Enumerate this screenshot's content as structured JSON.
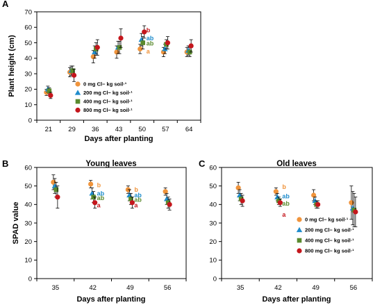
{
  "colors": {
    "0 mg": "#f0943c",
    "200 mg": "#1f8ccc",
    "400 mg": "#5a8a2e",
    "800 mg": "#c4161c"
  },
  "chart_data": [
    {
      "id": "A",
      "type": "scatter",
      "panel_label": "A",
      "title": "",
      "xlabel": "Days after planting",
      "ylabel": "Plant height (cm)",
      "categories": [
        "21",
        "29",
        "36",
        "43",
        "50",
        "57",
        "64"
      ],
      "ylim": [
        0,
        70
      ],
      "yticks": [
        0,
        10,
        20,
        30,
        40,
        50,
        60,
        70
      ],
      "legend_position": "bottom-center",
      "series": [
        {
          "name": "0 mg Cl− kg soil·¹",
          "marker": "circle",
          "color": "#f0943c",
          "values": [
            18,
            31,
            41,
            44,
            46,
            44,
            44
          ],
          "errors": [
            2,
            3,
            4,
            4,
            3,
            3,
            3
          ]
        },
        {
          "name": "200 mg Cl− kg soil·¹",
          "marker": "triangle",
          "color": "#1f8ccc",
          "values": [
            20,
            32,
            44,
            47,
            52,
            46,
            45
          ],
          "errors": [
            2,
            3,
            4,
            4,
            4,
            3,
            3
          ]
        },
        {
          "name": "400 mg Cl− kg soil·¹",
          "marker": "square",
          "color": "#5a8a2e",
          "values": [
            19,
            32,
            46,
            47,
            50,
            49,
            44
          ],
          "errors": [
            2,
            3,
            4,
            4,
            4,
            3,
            3
          ]
        },
        {
          "name": "800 mg Cl− kg soil·¹",
          "marker": "circle",
          "color": "#c4161c",
          "values": [
            16,
            29,
            47,
            53,
            57,
            50,
            48
          ],
          "errors": [
            2,
            4,
            5,
            6,
            4,
            4,
            4
          ]
        }
      ],
      "annotations": [
        {
          "category": "50",
          "value": 58,
          "text": "b",
          "color": "#c4161c"
        },
        {
          "category": "50",
          "value": 53,
          "text": "ab",
          "color": "#1f8ccc"
        },
        {
          "category": "50",
          "value": 49.5,
          "text": "ab",
          "color": "#5a8a2e"
        },
        {
          "category": "50",
          "value": 44.5,
          "text": "a",
          "color": "#f0943c"
        }
      ]
    },
    {
      "id": "B",
      "type": "scatter",
      "panel_label": "B",
      "title": "Young leaves",
      "xlabel": "Days after planting",
      "ylabel": "SPAD value",
      "categories": [
        "35",
        "42",
        "49",
        "56"
      ],
      "ylim": [
        0,
        60
      ],
      "yticks": [
        0,
        10,
        20,
        30,
        40,
        50,
        60
      ],
      "series": [
        {
          "name": "0 mg",
          "marker": "circle",
          "color": "#f0943c",
          "values": [
            52,
            51,
            48,
            47
          ],
          "errors": [
            4,
            2,
            2,
            2
          ]
        },
        {
          "name": "200 mg",
          "marker": "triangle",
          "color": "#1f8ccc",
          "values": [
            50,
            46,
            45,
            43
          ],
          "errors": [
            4,
            3,
            3,
            3
          ]
        },
        {
          "name": "400 mg",
          "marker": "square",
          "color": "#5a8a2e",
          "values": [
            48,
            44,
            43,
            41
          ],
          "errors": [
            4,
            3,
            3,
            3
          ]
        },
        {
          "name": "800 mg",
          "marker": "circle",
          "color": "#c4161c",
          "values": [
            44,
            41,
            41,
            40
          ],
          "errors": [
            6,
            3,
            3,
            3
          ]
        }
      ],
      "annotations": [
        {
          "category": "42",
          "value": 50.5,
          "text": "b",
          "color": "#f0943c"
        },
        {
          "category": "42",
          "value": 46,
          "text": "ab",
          "color": "#1f8ccc"
        },
        {
          "category": "42",
          "value": 43.5,
          "text": "ab",
          "color": "#5a8a2e"
        },
        {
          "category": "42",
          "value": 39.5,
          "text": "a",
          "color": "#c4161c"
        },
        {
          "category": "49",
          "value": 48,
          "text": "b",
          "color": "#f0943c"
        },
        {
          "category": "49",
          "value": 45,
          "text": "ab",
          "color": "#1f8ccc"
        },
        {
          "category": "49",
          "value": 42.5,
          "text": "ab",
          "color": "#5a8a2e"
        },
        {
          "category": "49",
          "value": 39.5,
          "text": "a",
          "color": "#c4161c"
        }
      ]
    },
    {
      "id": "C",
      "type": "scatter",
      "panel_label": "C",
      "title": "Old leaves",
      "xlabel": "Days after planting",
      "ylabel": "",
      "categories": [
        "35",
        "42",
        "49",
        "56"
      ],
      "ylim": [
        0,
        60
      ],
      "yticks": [
        0,
        10,
        20,
        30,
        40,
        50,
        60
      ],
      "legend_position": "bottom-right",
      "series": [
        {
          "name": "0 mg Cl− kg soil·¹",
          "marker": "circle",
          "color": "#f0943c",
          "values": [
            49,
            47,
            45,
            41
          ],
          "errors": [
            3,
            2,
            3,
            9
          ]
        },
        {
          "name": "200 mg Cl− kg soil·¹",
          "marker": "triangle",
          "color": "#1f8ccc",
          "values": [
            45,
            44,
            42,
            38
          ],
          "errors": [
            3,
            2,
            2,
            9
          ]
        },
        {
          "name": "400 mg Cl− kg soil·¹",
          "marker": "square",
          "color": "#5a8a2e",
          "values": [
            43,
            42,
            40,
            37
          ],
          "errors": [
            3,
            2,
            2,
            9
          ]
        },
        {
          "name": "800 mg Cl− kg soil·¹",
          "marker": "circle",
          "color": "#c4161c",
          "values": [
            42,
            41,
            40,
            36
          ],
          "errors": [
            3,
            2,
            2,
            8
          ]
        }
      ],
      "annotations": [
        {
          "category": "42",
          "value": 49.5,
          "text": "b",
          "color": "#f0943c"
        },
        {
          "category": "42",
          "value": 44.5,
          "text": "ab",
          "color": "#1f8ccc"
        },
        {
          "category": "42",
          "value": 40.5,
          "text": "ab",
          "color": "#5a8a2e"
        },
        {
          "category": "42",
          "value": 34.5,
          "text": "a",
          "color": "#c4161c"
        }
      ]
    }
  ]
}
